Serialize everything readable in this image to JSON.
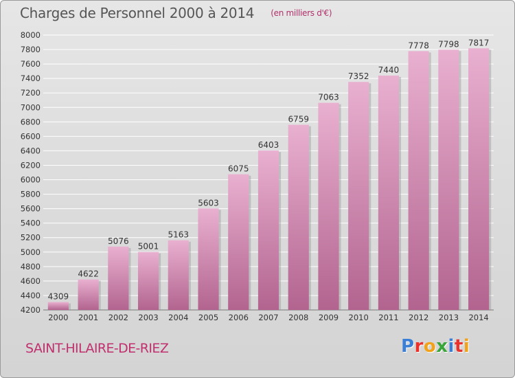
{
  "header": {
    "title": "Charges de Personnel 2000 à 2014",
    "subtitle": "(en milliers d'€)"
  },
  "footer": {
    "city": "SAINT-HILAIRE-DE-RIEZ",
    "logo_letters": [
      "P",
      "r",
      "o",
      "x",
      "i",
      "t",
      "i"
    ],
    "logo_colors": [
      "#3a7fd6",
      "#e8322b",
      "#f0a21b",
      "#3aa53a",
      "#3a7fd6",
      "#e8322b",
      "#f0a21b"
    ]
  },
  "colors": {
    "bar_top": "#e9b0d0",
    "bar_bottom": "#b2648f",
    "bar_shadow": "#9a9a9a",
    "grid": "#ffffff",
    "axis_text": "#333333"
  },
  "chart_data": {
    "type": "bar",
    "categories": [
      "2000",
      "2001",
      "2002",
      "2003",
      "2004",
      "2005",
      "2006",
      "2007",
      "2008",
      "2009",
      "2010",
      "2011",
      "2012",
      "2013",
      "2014"
    ],
    "values": [
      4309,
      4622,
      5076,
      5001,
      5163,
      5603,
      6075,
      6403,
      6759,
      7063,
      7352,
      7440,
      7778,
      7798,
      7817
    ],
    "ylim": [
      4200,
      8000
    ],
    "yticks": [
      4200,
      4400,
      4600,
      4800,
      5000,
      5200,
      5400,
      5600,
      5800,
      6000,
      6200,
      6400,
      6600,
      6800,
      7000,
      7200,
      7400,
      7600,
      7800,
      8000
    ],
    "grid": true,
    "data_labels": true
  }
}
